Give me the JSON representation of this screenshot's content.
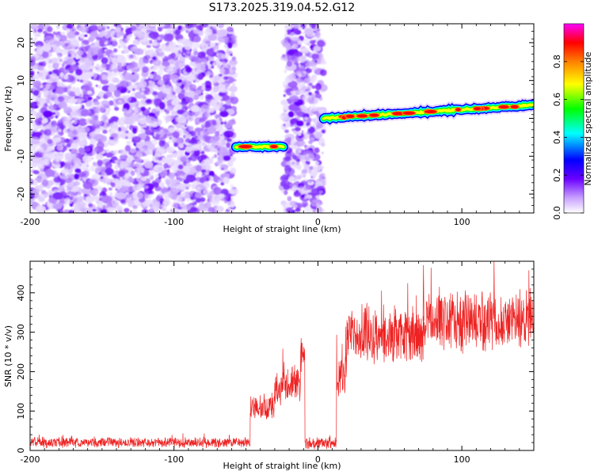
{
  "title": "S173.2025.319.04.52.G12",
  "chart_data": [
    {
      "type": "heatmap",
      "xlabel": "Height of straight line (km)",
      "ylabel": "Frequency (Hz)",
      "xlim": [
        -200,
        150
      ],
      "ylim": [
        -25,
        25
      ],
      "xticks": [
        -200,
        -100,
        0,
        100
      ],
      "yticks": [
        -20,
        -10,
        0,
        10,
        20
      ],
      "colorbar": {
        "label": "Normalized spectral amplitude",
        "range": [
          0.0,
          1.0
        ],
        "ticks": [
          0.0,
          0.2,
          0.4,
          0.6,
          0.8
        ],
        "colormap": [
          "#ffffff",
          "#6a00ff",
          "#0000ff",
          "#00ffff",
          "#00ff00",
          "#ffff00",
          "#ff8000",
          "#ff0000",
          "#ff00ff"
        ]
      },
      "noise_regions": [
        [
          -200,
          -58
        ],
        [
          -24,
          4
        ]
      ],
      "ridges": [
        {
          "x_start": -57,
          "x_end": -24,
          "freq_start": -7.5,
          "freq_end": -7.5,
          "amplitude": 0.85
        },
        {
          "x_start": 4,
          "x_end": 150,
          "freq_start": 0,
          "freq_end": 3.5,
          "amplitude": 1.0
        }
      ]
    },
    {
      "type": "line",
      "xlabel": "Height of straight line (km)",
      "ylabel": "SNR (10 * v/v)",
      "xlim": [
        -200,
        150
      ],
      "ylim": [
        0,
        480
      ],
      "xticks": [
        -200,
        -100,
        0,
        100
      ],
      "yticks": [
        0,
        100,
        200,
        300,
        400
      ],
      "series": [
        {
          "name": "SNR",
          "color": "#ee2222",
          "segments": [
            {
              "x_start": -200,
              "x_end": -47,
              "mean": 20,
              "spread": 12
            },
            {
              "x_start": -47,
              "x_end": -30,
              "mean": 105,
              "spread": 35
            },
            {
              "x_start": -30,
              "x_end": -12,
              "mean": 165,
              "spread": 45
            },
            {
              "x_start": -12,
              "x_end": -9,
              "mean": 250,
              "spread": 30
            },
            {
              "x_start": -9,
              "x_end": 13,
              "mean": 18,
              "spread": 14
            },
            {
              "x_start": 13,
              "x_end": 20,
              "mean": 200,
              "spread": 70
            },
            {
              "x_start": 20,
              "x_end": 75,
              "mean": 290,
              "spread": 75
            },
            {
              "x_start": 75,
              "x_end": 150,
              "mean": 330,
              "spread": 75
            }
          ],
          "peaks": [
            {
              "x": -12,
              "y": 285
            },
            {
              "x": 73,
              "y": 470
            }
          ]
        }
      ]
    }
  ]
}
